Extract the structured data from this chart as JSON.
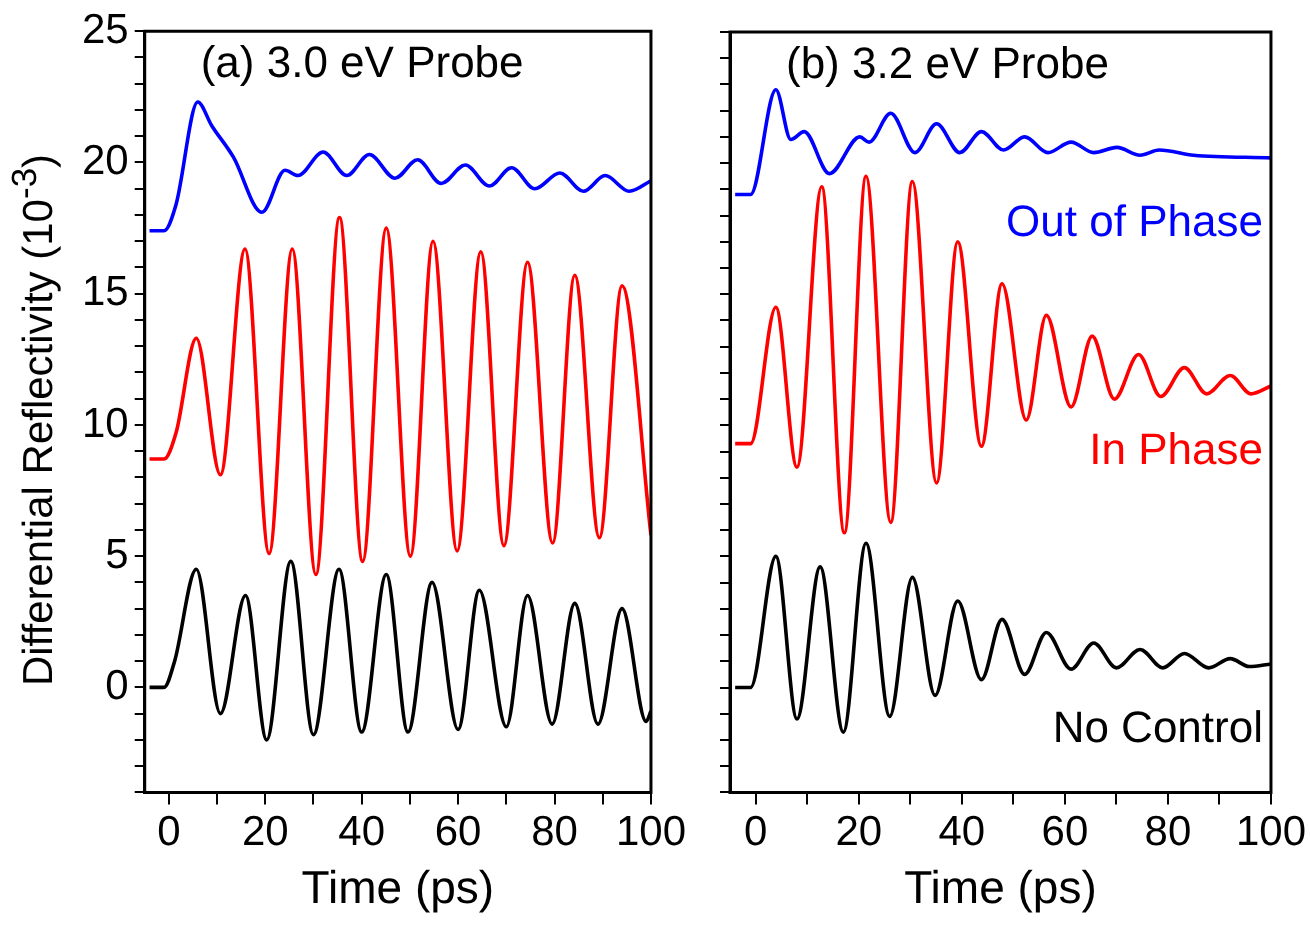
{
  "chart_data": [
    {
      "type": "line",
      "title": "(a) 3.0 eV Probe",
      "xlabel": "Time (ps)",
      "ylabel": "Differential Reflectivity (10$^{-3}$)",
      "xlim": [
        -5,
        100
      ],
      "ylim": [
        -4,
        25
      ],
      "xticks": [
        0,
        {
          "value": 10,
          "label": null
        },
        20,
        {
          "value": 30,
          "label": null
        },
        40,
        {
          "value": 50,
          "label": null
        },
        60,
        {
          "value": 70,
          "label": null
        },
        80,
        {
          "value": 90,
          "label": null
        },
        100
      ],
      "yticks": [
        {
          "value": -4,
          "label": null
        },
        {
          "value": -3,
          "label": null
        },
        {
          "value": -2,
          "label": null
        },
        {
          "value": -1,
          "label": null
        },
        0,
        {
          "value": 1,
          "label": null
        },
        {
          "value": 2,
          "label": null
        },
        {
          "value": 3,
          "label": null
        },
        {
          "value": 4,
          "label": null
        },
        5,
        {
          "value": 6,
          "label": null
        },
        {
          "value": 7,
          "label": null
        },
        {
          "value": 8,
          "label": null
        },
        {
          "value": 9,
          "label": null
        },
        10,
        {
          "value": 11,
          "label": null
        },
        {
          "value": 12,
          "label": null
        },
        {
          "value": 13,
          "label": null
        },
        {
          "value": 14,
          "label": null
        },
        15,
        {
          "value": 16,
          "label": null
        },
        {
          "value": 17,
          "label": null
        },
        {
          "value": 18,
          "label": null
        },
        {
          "value": 19,
          "label": null
        },
        20,
        {
          "value": 21,
          "label": null
        },
        {
          "value": 22,
          "label": null
        },
        {
          "value": 23,
          "label": null
        },
        {
          "value": 24,
          "label": null
        },
        25
      ],
      "grid": false,
      "legend": false,
      "marker": "none",
      "line_style": "solid",
      "series": [
        {
          "color": "#000000",
          "x": [
            -4,
            -1,
            1.2,
            5.7,
            10.7,
            15.9,
            20.3,
            25.3,
            30,
            35.3,
            40,
            45.1,
            49.6,
            54.6,
            60,
            64.4,
            70,
            74.4,
            79.5,
            84.2,
            89,
            94,
            99,
            100
          ],
          "values": [
            0,
            0,
            1,
            4.5,
            -1.0,
            3.5,
            -2.0,
            4.8,
            -1.8,
            4.5,
            -1.7,
            4.3,
            -1.7,
            4.0,
            -1.6,
            3.7,
            -1.5,
            3.5,
            -1.4,
            3.2,
            -1.4,
            3.0,
            -1.3,
            -0.9
          ]
        },
        {
          "color": "#ff0000",
          "x": [
            -4,
            -1,
            1.5,
            5.7,
            10.7,
            15.8,
            20.8,
            25.6,
            30.5,
            35.4,
            40.2,
            45.1,
            50.1,
            54.8,
            59.8,
            64.7,
            69.5,
            74.4,
            79.6,
            84.2,
            89.3,
            94,
            100
          ],
          "values": [
            8.7,
            8.7,
            9.7,
            13.3,
            8.1,
            16.7,
            5.1,
            16.7,
            4.3,
            17.9,
            4.8,
            17.5,
            5.0,
            17.0,
            5.2,
            16.6,
            5.4,
            16.2,
            5.5,
            15.7,
            5.7,
            15.3,
            5.8
          ]
        },
        {
          "color": "#0000ff",
          "x": [
            -4,
            -1,
            1.5,
            6.0,
            8.9,
            13.4,
            19.3,
            24.1,
            26.8,
            32,
            36.9,
            41.6,
            46.9,
            51.6,
            56.5,
            61.5,
            66.5,
            71.1,
            75.9,
            81.1,
            86,
            90.5,
            95.5,
            100
          ],
          "values": [
            17.4,
            17.4,
            18.4,
            22.3,
            21.4,
            20.2,
            18.1,
            19.7,
            19.5,
            20.4,
            19.5,
            20.3,
            19.4,
            20.1,
            19.2,
            19.9,
            19.1,
            19.8,
            19.0,
            19.6,
            18.9,
            19.5,
            18.9,
            19.3
          ]
        }
      ]
    },
    {
      "type": "line",
      "title": "(b) 3.2 eV Probe",
      "xlabel": "Time (ps)",
      "xlim": [
        -5,
        100
      ],
      "ylim": [
        -4,
        25
      ],
      "tick_labels": "x",
      "xticks": [
        0,
        {
          "value": 10,
          "label": null
        },
        20,
        {
          "value": 30,
          "label": null
        },
        40,
        {
          "value": 50,
          "label": null
        },
        60,
        {
          "value": 70,
          "label": null
        },
        80,
        {
          "value": 90,
          "label": null
        },
        100
      ],
      "yticks": [
        {
          "value": -4,
          "label": null
        },
        {
          "value": -3,
          "label": null
        },
        {
          "value": -2,
          "label": null
        },
        {
          "value": -1,
          "label": null
        },
        0,
        {
          "value": 1,
          "label": null
        },
        {
          "value": 2,
          "label": null
        },
        {
          "value": 3,
          "label": null
        },
        {
          "value": 4,
          "label": null
        },
        5,
        {
          "value": 6,
          "label": null
        },
        {
          "value": 7,
          "label": null
        },
        {
          "value": 8,
          "label": null
        },
        {
          "value": 9,
          "label": null
        },
        10,
        {
          "value": 11,
          "label": null
        },
        {
          "value": 12,
          "label": null
        },
        {
          "value": 13,
          "label": null
        },
        {
          "value": 14,
          "label": null
        },
        15,
        {
          "value": 16,
          "label": null
        },
        {
          "value": 17,
          "label": null
        },
        {
          "value": 18,
          "label": null
        },
        {
          "value": 19,
          "label": null
        },
        20,
        {
          "value": 21,
          "label": null
        },
        {
          "value": 22,
          "label": null
        },
        {
          "value": 23,
          "label": null
        },
        {
          "value": 24,
          "label": null
        },
        25
      ],
      "grid": false,
      "legend": false,
      "marker": "none",
      "line_style": "solid",
      "series": [
        {
          "name": "No Control",
          "color": "#000000",
          "x": [
            -4,
            -1,
            3.9,
            8.0,
            12.5,
            17,
            21.4,
            26,
            30.4,
            34.8,
            39.2,
            43.8,
            47.8,
            52.2,
            56.4,
            61.2,
            65.6,
            70,
            74.6,
            79,
            83.2,
            87.9,
            92.1,
            95.8,
            100
          ],
          "values": [
            0,
            0,
            5.0,
            -1.2,
            4.6,
            -1.7,
            5.5,
            -1.1,
            4.2,
            -0.3,
            3.3,
            0.3,
            2.6,
            0.5,
            2.1,
            0.7,
            1.7,
            0.75,
            1.45,
            0.75,
            1.3,
            0.75,
            1.1,
            0.8,
            0.9
          ]
        },
        {
          "name": "In Phase",
          "color": "#ff0000",
          "x": [
            -4,
            -1,
            3.9,
            8.0,
            12.8,
            17.2,
            21.4,
            26.2,
            30.4,
            35.1,
            39.2,
            43.8,
            47.8,
            52.5,
            56.4,
            61.2,
            65.3,
            69.6,
            74.3,
            78.6,
            83.2,
            87.5,
            92.1,
            96.1,
            100
          ],
          "values": [
            9.3,
            9.3,
            14.5,
            8.4,
            19.1,
            5.9,
            19.5,
            6.3,
            19.3,
            7.8,
            17.0,
            9.2,
            15.4,
            10.2,
            14.2,
            10.7,
            13.4,
            11.0,
            12.7,
            11.1,
            12.2,
            11.2,
            11.9,
            11.2,
            11.5
          ]
        },
        {
          "name": "Out of Phase",
          "color": "#0000ff",
          "x": [
            -4,
            -1,
            3.9,
            6.8,
            9.4,
            14.3,
            20.2,
            22,
            26.2,
            30.9,
            35.1,
            39.6,
            43.8,
            48.1,
            52.2,
            56.7,
            61.2,
            65.6,
            70.1,
            74.6,
            78.3,
            85,
            100
          ],
          "values": [
            18.8,
            18.8,
            22.8,
            20.9,
            21.2,
            19.6,
            21.0,
            20.8,
            21.9,
            20.4,
            21.5,
            20.4,
            21.2,
            20.5,
            21.0,
            20.4,
            20.8,
            20.4,
            20.6,
            20.3,
            20.5,
            20.3,
            20.2
          ]
        }
      ]
    }
  ]
}
